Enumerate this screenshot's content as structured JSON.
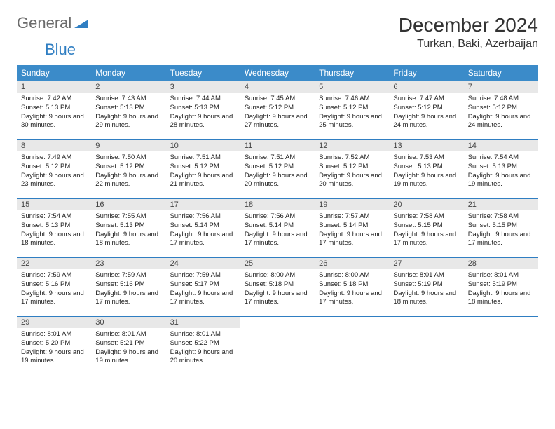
{
  "logo": {
    "word1": "General",
    "word2": "Blue"
  },
  "title": "December 2024",
  "location": "Turkan, Baki, Azerbaijan",
  "colors": {
    "header_bg": "#3b8bc9",
    "rule": "#2f7ec2",
    "daynum_bg": "#e8e8e8",
    "logo_gray": "#6b6b6b",
    "logo_blue": "#2f7ec2"
  },
  "fonts": {
    "title_size": 28,
    "location_size": 16,
    "dayhead_size": 12,
    "cell_size": 9.5
  },
  "weekdays": [
    "Sunday",
    "Monday",
    "Tuesday",
    "Wednesday",
    "Thursday",
    "Friday",
    "Saturday"
  ],
  "weeks": [
    [
      {
        "n": "1",
        "sunrise": "7:42 AM",
        "sunset": "5:13 PM",
        "dl": "9 hours and 30 minutes."
      },
      {
        "n": "2",
        "sunrise": "7:43 AM",
        "sunset": "5:13 PM",
        "dl": "9 hours and 29 minutes."
      },
      {
        "n": "3",
        "sunrise": "7:44 AM",
        "sunset": "5:13 PM",
        "dl": "9 hours and 28 minutes."
      },
      {
        "n": "4",
        "sunrise": "7:45 AM",
        "sunset": "5:12 PM",
        "dl": "9 hours and 27 minutes."
      },
      {
        "n": "5",
        "sunrise": "7:46 AM",
        "sunset": "5:12 PM",
        "dl": "9 hours and 25 minutes."
      },
      {
        "n": "6",
        "sunrise": "7:47 AM",
        "sunset": "5:12 PM",
        "dl": "9 hours and 24 minutes."
      },
      {
        "n": "7",
        "sunrise": "7:48 AM",
        "sunset": "5:12 PM",
        "dl": "9 hours and 24 minutes."
      }
    ],
    [
      {
        "n": "8",
        "sunrise": "7:49 AM",
        "sunset": "5:12 PM",
        "dl": "9 hours and 23 minutes."
      },
      {
        "n": "9",
        "sunrise": "7:50 AM",
        "sunset": "5:12 PM",
        "dl": "9 hours and 22 minutes."
      },
      {
        "n": "10",
        "sunrise": "7:51 AM",
        "sunset": "5:12 PM",
        "dl": "9 hours and 21 minutes."
      },
      {
        "n": "11",
        "sunrise": "7:51 AM",
        "sunset": "5:12 PM",
        "dl": "9 hours and 20 minutes."
      },
      {
        "n": "12",
        "sunrise": "7:52 AM",
        "sunset": "5:12 PM",
        "dl": "9 hours and 20 minutes."
      },
      {
        "n": "13",
        "sunrise": "7:53 AM",
        "sunset": "5:13 PM",
        "dl": "9 hours and 19 minutes."
      },
      {
        "n": "14",
        "sunrise": "7:54 AM",
        "sunset": "5:13 PM",
        "dl": "9 hours and 19 minutes."
      }
    ],
    [
      {
        "n": "15",
        "sunrise": "7:54 AM",
        "sunset": "5:13 PM",
        "dl": "9 hours and 18 minutes."
      },
      {
        "n": "16",
        "sunrise": "7:55 AM",
        "sunset": "5:13 PM",
        "dl": "9 hours and 18 minutes."
      },
      {
        "n": "17",
        "sunrise": "7:56 AM",
        "sunset": "5:14 PM",
        "dl": "9 hours and 17 minutes."
      },
      {
        "n": "18",
        "sunrise": "7:56 AM",
        "sunset": "5:14 PM",
        "dl": "9 hours and 17 minutes."
      },
      {
        "n": "19",
        "sunrise": "7:57 AM",
        "sunset": "5:14 PM",
        "dl": "9 hours and 17 minutes."
      },
      {
        "n": "20",
        "sunrise": "7:58 AM",
        "sunset": "5:15 PM",
        "dl": "9 hours and 17 minutes."
      },
      {
        "n": "21",
        "sunrise": "7:58 AM",
        "sunset": "5:15 PM",
        "dl": "9 hours and 17 minutes."
      }
    ],
    [
      {
        "n": "22",
        "sunrise": "7:59 AM",
        "sunset": "5:16 PM",
        "dl": "9 hours and 17 minutes."
      },
      {
        "n": "23",
        "sunrise": "7:59 AM",
        "sunset": "5:16 PM",
        "dl": "9 hours and 17 minutes."
      },
      {
        "n": "24",
        "sunrise": "7:59 AM",
        "sunset": "5:17 PM",
        "dl": "9 hours and 17 minutes."
      },
      {
        "n": "25",
        "sunrise": "8:00 AM",
        "sunset": "5:18 PM",
        "dl": "9 hours and 17 minutes."
      },
      {
        "n": "26",
        "sunrise": "8:00 AM",
        "sunset": "5:18 PM",
        "dl": "9 hours and 17 minutes."
      },
      {
        "n": "27",
        "sunrise": "8:01 AM",
        "sunset": "5:19 PM",
        "dl": "9 hours and 18 minutes."
      },
      {
        "n": "28",
        "sunrise": "8:01 AM",
        "sunset": "5:19 PM",
        "dl": "9 hours and 18 minutes."
      }
    ],
    [
      {
        "n": "29",
        "sunrise": "8:01 AM",
        "sunset": "5:20 PM",
        "dl": "9 hours and 19 minutes."
      },
      {
        "n": "30",
        "sunrise": "8:01 AM",
        "sunset": "5:21 PM",
        "dl": "9 hours and 19 minutes."
      },
      {
        "n": "31",
        "sunrise": "8:01 AM",
        "sunset": "5:22 PM",
        "dl": "9 hours and 20 minutes."
      },
      null,
      null,
      null,
      null
    ]
  ],
  "labels": {
    "sunrise": "Sunrise:",
    "sunset": "Sunset:",
    "daylight": "Daylight:"
  }
}
